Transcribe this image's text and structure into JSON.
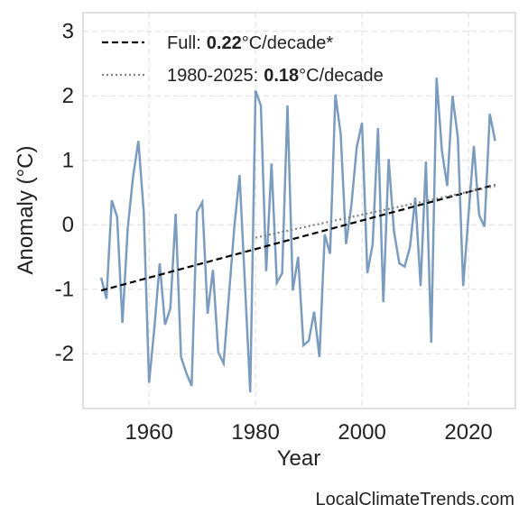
{
  "chart_data": {
    "type": "line",
    "x_label": "Year",
    "y_label": "Anomaly (°C)",
    "footer": "LocalClimateTrends.com",
    "xlim": [
      1947.6,
      2028.8
    ],
    "ylim": [
      -2.85,
      3.29
    ],
    "xticks": [
      1960,
      1980,
      2000,
      2020
    ],
    "yticks": [
      -2,
      -1,
      0,
      1,
      2,
      3
    ],
    "grid": true,
    "legend": "upper left",
    "series": [
      {
        "color": "#7b9cbf",
        "style": "solid",
        "x": [
          1951,
          1952,
          1953,
          1954,
          1955,
          1956,
          1957,
          1958,
          1959,
          1960,
          1961,
          1962,
          1963,
          1964,
          1965,
          1966,
          1967,
          1968,
          1969,
          1970,
          1971,
          1972,
          1973,
          1974,
          1975,
          1976,
          1977,
          1978,
          1979,
          1980,
          1981,
          1982,
          1983,
          1984,
          1985,
          1986,
          1987,
          1988,
          1989,
          1990,
          1991,
          1992,
          1993,
          1994,
          1995,
          1996,
          1997,
          1998,
          1999,
          2000,
          2001,
          2002,
          2003,
          2004,
          2005,
          2006,
          2007,
          2008,
          2009,
          2010,
          2011,
          2012,
          2013,
          2014,
          2015,
          2016,
          2017,
          2018,
          2019,
          2020,
          2021,
          2022,
          2023,
          2024,
          2025
        ],
        "values": [
          -0.82,
          -1.15,
          0.38,
          0.12,
          -1.52,
          -0.05,
          0.75,
          1.3,
          0.2,
          -2.45,
          -1.6,
          -0.6,
          -1.55,
          -1.3,
          0.17,
          -2.05,
          -2.3,
          -2.5,
          0.2,
          0.35,
          -1.38,
          -0.7,
          -1.98,
          -2.15,
          -1.1,
          -0.05,
          0.77,
          -0.9,
          -2.6,
          2.08,
          1.85,
          -0.72,
          0.95,
          -0.9,
          -0.75,
          1.85,
          -1.02,
          -0.5,
          -1.87,
          -1.8,
          -1.35,
          -2.05,
          -0.15,
          -0.45,
          2.02,
          1.4,
          -0.3,
          0.3,
          1.2,
          1.58,
          -0.75,
          -0.3,
          1.5,
          -1.2,
          1.02,
          -0.1,
          -0.6,
          -0.65,
          -0.35,
          0.42,
          -0.95,
          0.98,
          -1.83,
          2.28,
          1.15,
          0.6,
          2.0,
          1.35,
          -0.95,
          0.15,
          1.22,
          0.15,
          -0.03,
          1.72,
          1.3
        ]
      },
      {
        "name": "Full:",
        "rate": 0.22,
        "unit": "°C/decade*",
        "color": "#000000",
        "style": "dashed",
        "x": [
          1951,
          2025
        ],
        "values": [
          -1.02,
          0.62
        ]
      },
      {
        "name": "1980-2025:",
        "rate": 0.18,
        "unit": "°C/decade",
        "color": "#808080",
        "style": "dotted",
        "x": [
          1980,
          2025
        ],
        "values": [
          -0.2,
          0.6
        ]
      }
    ]
  }
}
